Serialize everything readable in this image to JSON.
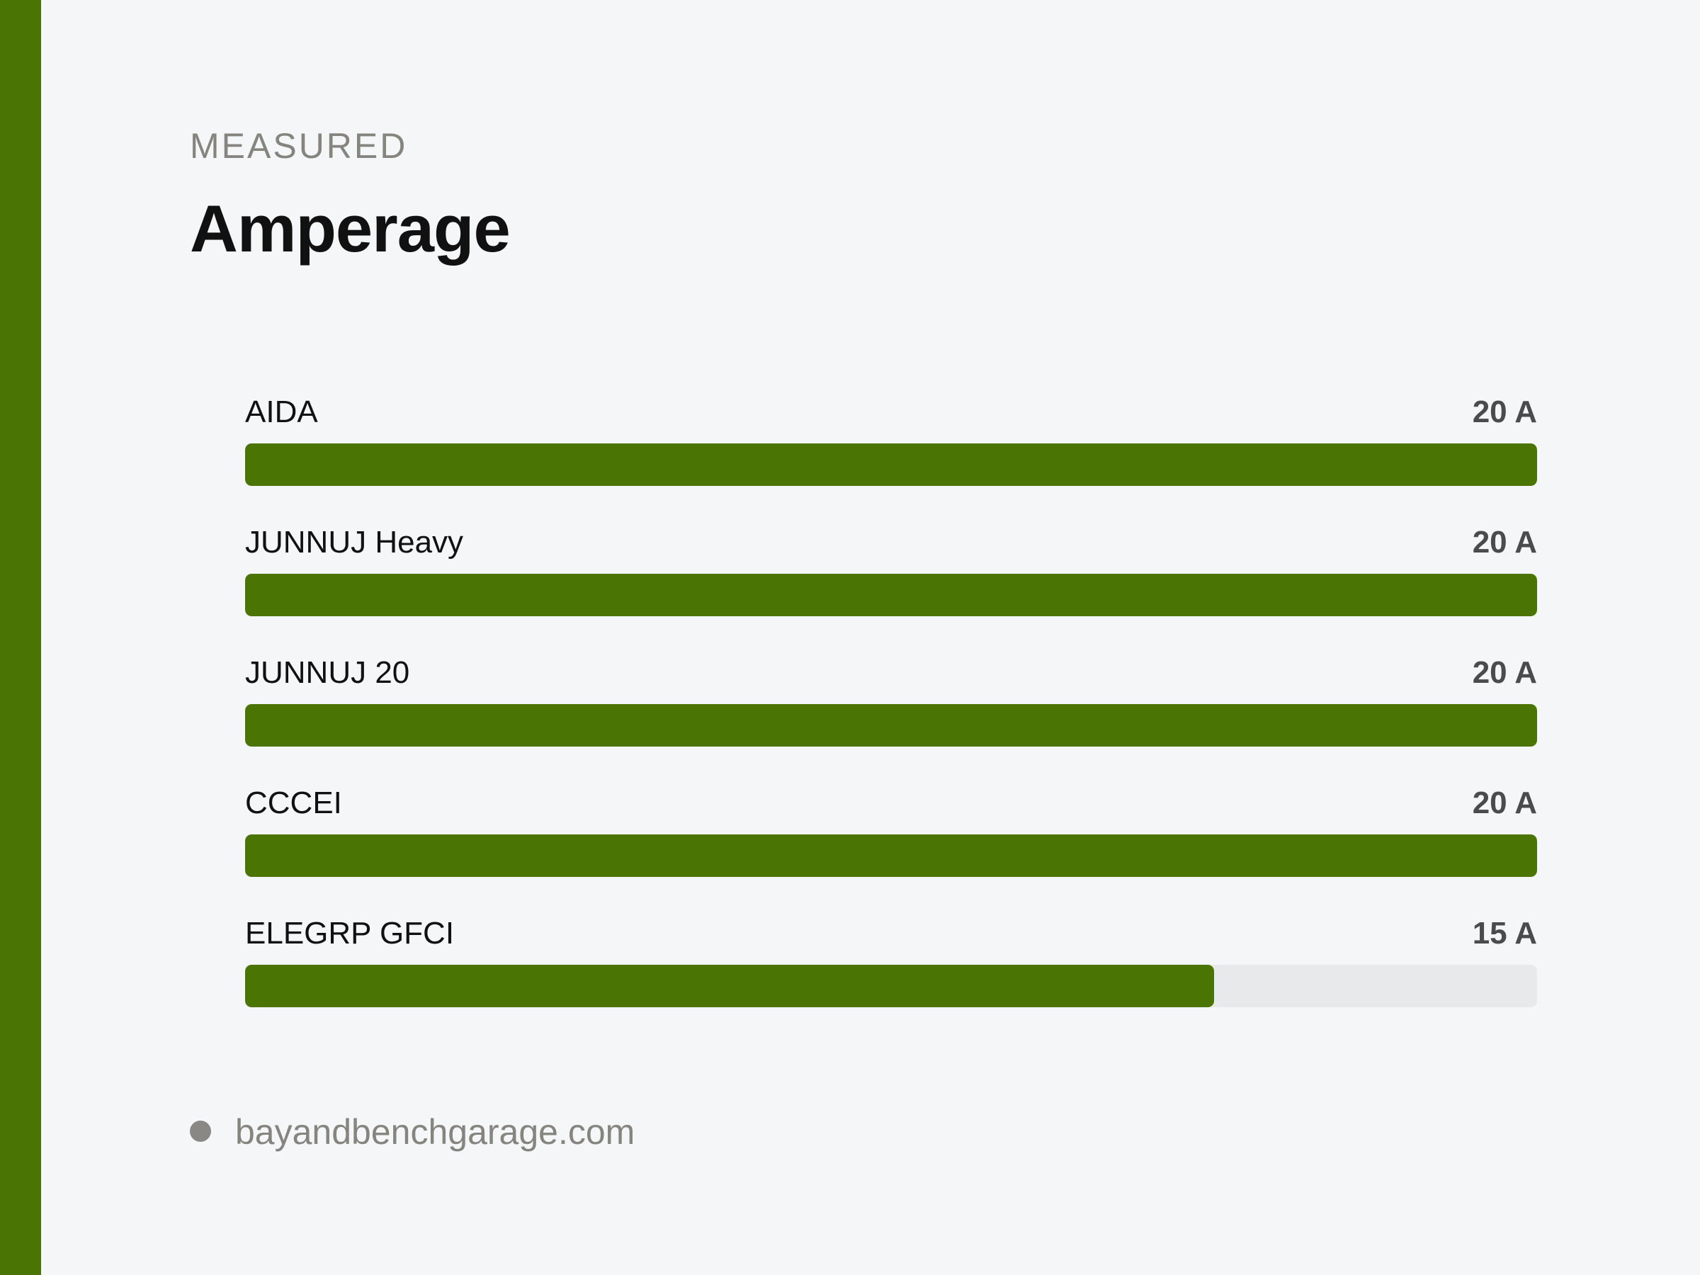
{
  "header": {
    "eyebrow": "MEASURED",
    "title": "Amperage"
  },
  "colors": {
    "accent": "#4a7504",
    "track": "#e8e9eb",
    "background": "#f5f6f8"
  },
  "chart_data": {
    "type": "bar",
    "orientation": "horizontal",
    "title": "Amperage",
    "unit": "A",
    "xlim": [
      0,
      20
    ],
    "categories": [
      "AIDA",
      "JUNNUJ Heavy",
      "JUNNUJ 20",
      "CCCEI",
      "ELEGRP GFCI"
    ],
    "values": [
      20,
      20,
      20,
      20,
      15
    ],
    "value_labels": [
      "20 A",
      "20 A",
      "20 A",
      "20 A",
      "15 A"
    ]
  },
  "footer": {
    "source": "bayandbenchgarage.com"
  }
}
